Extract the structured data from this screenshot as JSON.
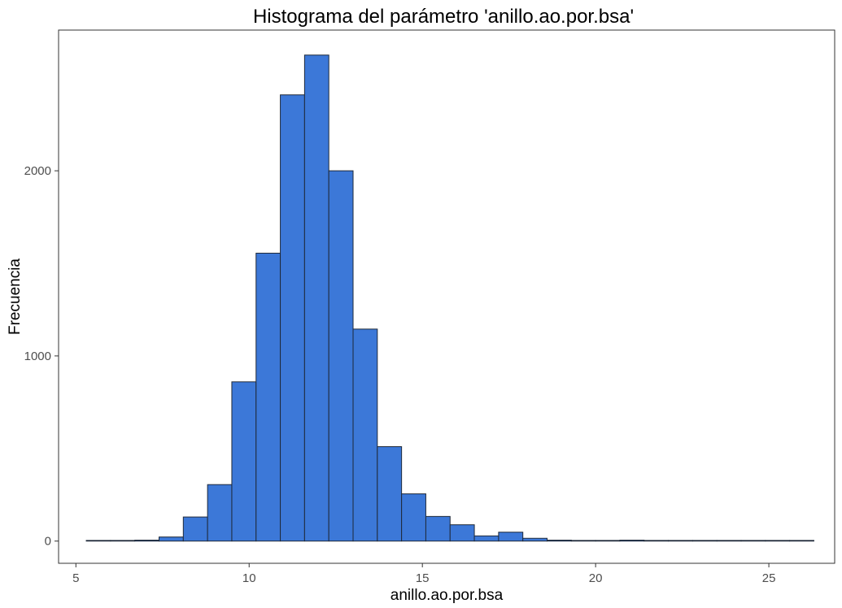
{
  "chart_data": {
    "type": "bar",
    "title": "Histograma del parámetro 'anillo.ao.por.bsa'",
    "xlabel": "anillo.ao.por.bsa",
    "ylabel": "Frecuencia",
    "xlim": [
      4.5,
      26.9
    ],
    "ylim": [
      -120,
      2760
    ],
    "x_ticks": [
      5,
      10,
      15,
      20,
      25
    ],
    "y_ticks": [
      0,
      1000,
      2000
    ],
    "tick_labels_x": [
      "5",
      "10",
      "15",
      "20",
      "25"
    ],
    "tick_labels_y": [
      "0",
      "1000",
      "2000"
    ],
    "bin_width": 0.7,
    "range": [
      5.3,
      26.3
    ],
    "bins": [
      {
        "start": 5.3,
        "end": 6.0,
        "count": 0
      },
      {
        "start": 6.0,
        "end": 6.7,
        "count": 0
      },
      {
        "start": 6.7,
        "end": 7.4,
        "count": 5
      },
      {
        "start": 7.4,
        "end": 8.1,
        "count": 22
      },
      {
        "start": 8.1,
        "end": 8.8,
        "count": 130
      },
      {
        "start": 8.8,
        "end": 9.5,
        "count": 305
      },
      {
        "start": 9.5,
        "end": 10.2,
        "count": 860
      },
      {
        "start": 10.2,
        "end": 10.9,
        "count": 1555
      },
      {
        "start": 10.9,
        "end": 11.6,
        "count": 2410
      },
      {
        "start": 11.6,
        "end": 12.3,
        "count": 2625
      },
      {
        "start": 12.3,
        "end": 13.0,
        "count": 2000
      },
      {
        "start": 13.0,
        "end": 13.7,
        "count": 1145
      },
      {
        "start": 13.7,
        "end": 14.4,
        "count": 510
      },
      {
        "start": 14.4,
        "end": 15.1,
        "count": 255
      },
      {
        "start": 15.1,
        "end": 15.8,
        "count": 133
      },
      {
        "start": 15.8,
        "end": 16.5,
        "count": 88
      },
      {
        "start": 16.5,
        "end": 17.2,
        "count": 28
      },
      {
        "start": 17.2,
        "end": 17.9,
        "count": 48
      },
      {
        "start": 17.9,
        "end": 18.6,
        "count": 15
      },
      {
        "start": 18.6,
        "end": 19.3,
        "count": 5
      },
      {
        "start": 19.3,
        "end": 20.0,
        "count": 0
      },
      {
        "start": 20.0,
        "end": 20.7,
        "count": 0
      },
      {
        "start": 20.7,
        "end": 21.4,
        "count": 5
      },
      {
        "start": 21.4,
        "end": 22.1,
        "count": 0
      },
      {
        "start": 22.1,
        "end": 22.8,
        "count": 0
      },
      {
        "start": 22.8,
        "end": 23.5,
        "count": 0
      },
      {
        "start": 23.5,
        "end": 24.2,
        "count": 0
      },
      {
        "start": 24.2,
        "end": 24.9,
        "count": 0
      },
      {
        "start": 24.9,
        "end": 25.6,
        "count": 0
      },
      {
        "start": 25.6,
        "end": 26.3,
        "count": 0
      }
    ],
    "bar_fill": "#3c78d8",
    "bar_stroke": "#1f2a3a",
    "grid": false,
    "legend": "none"
  }
}
